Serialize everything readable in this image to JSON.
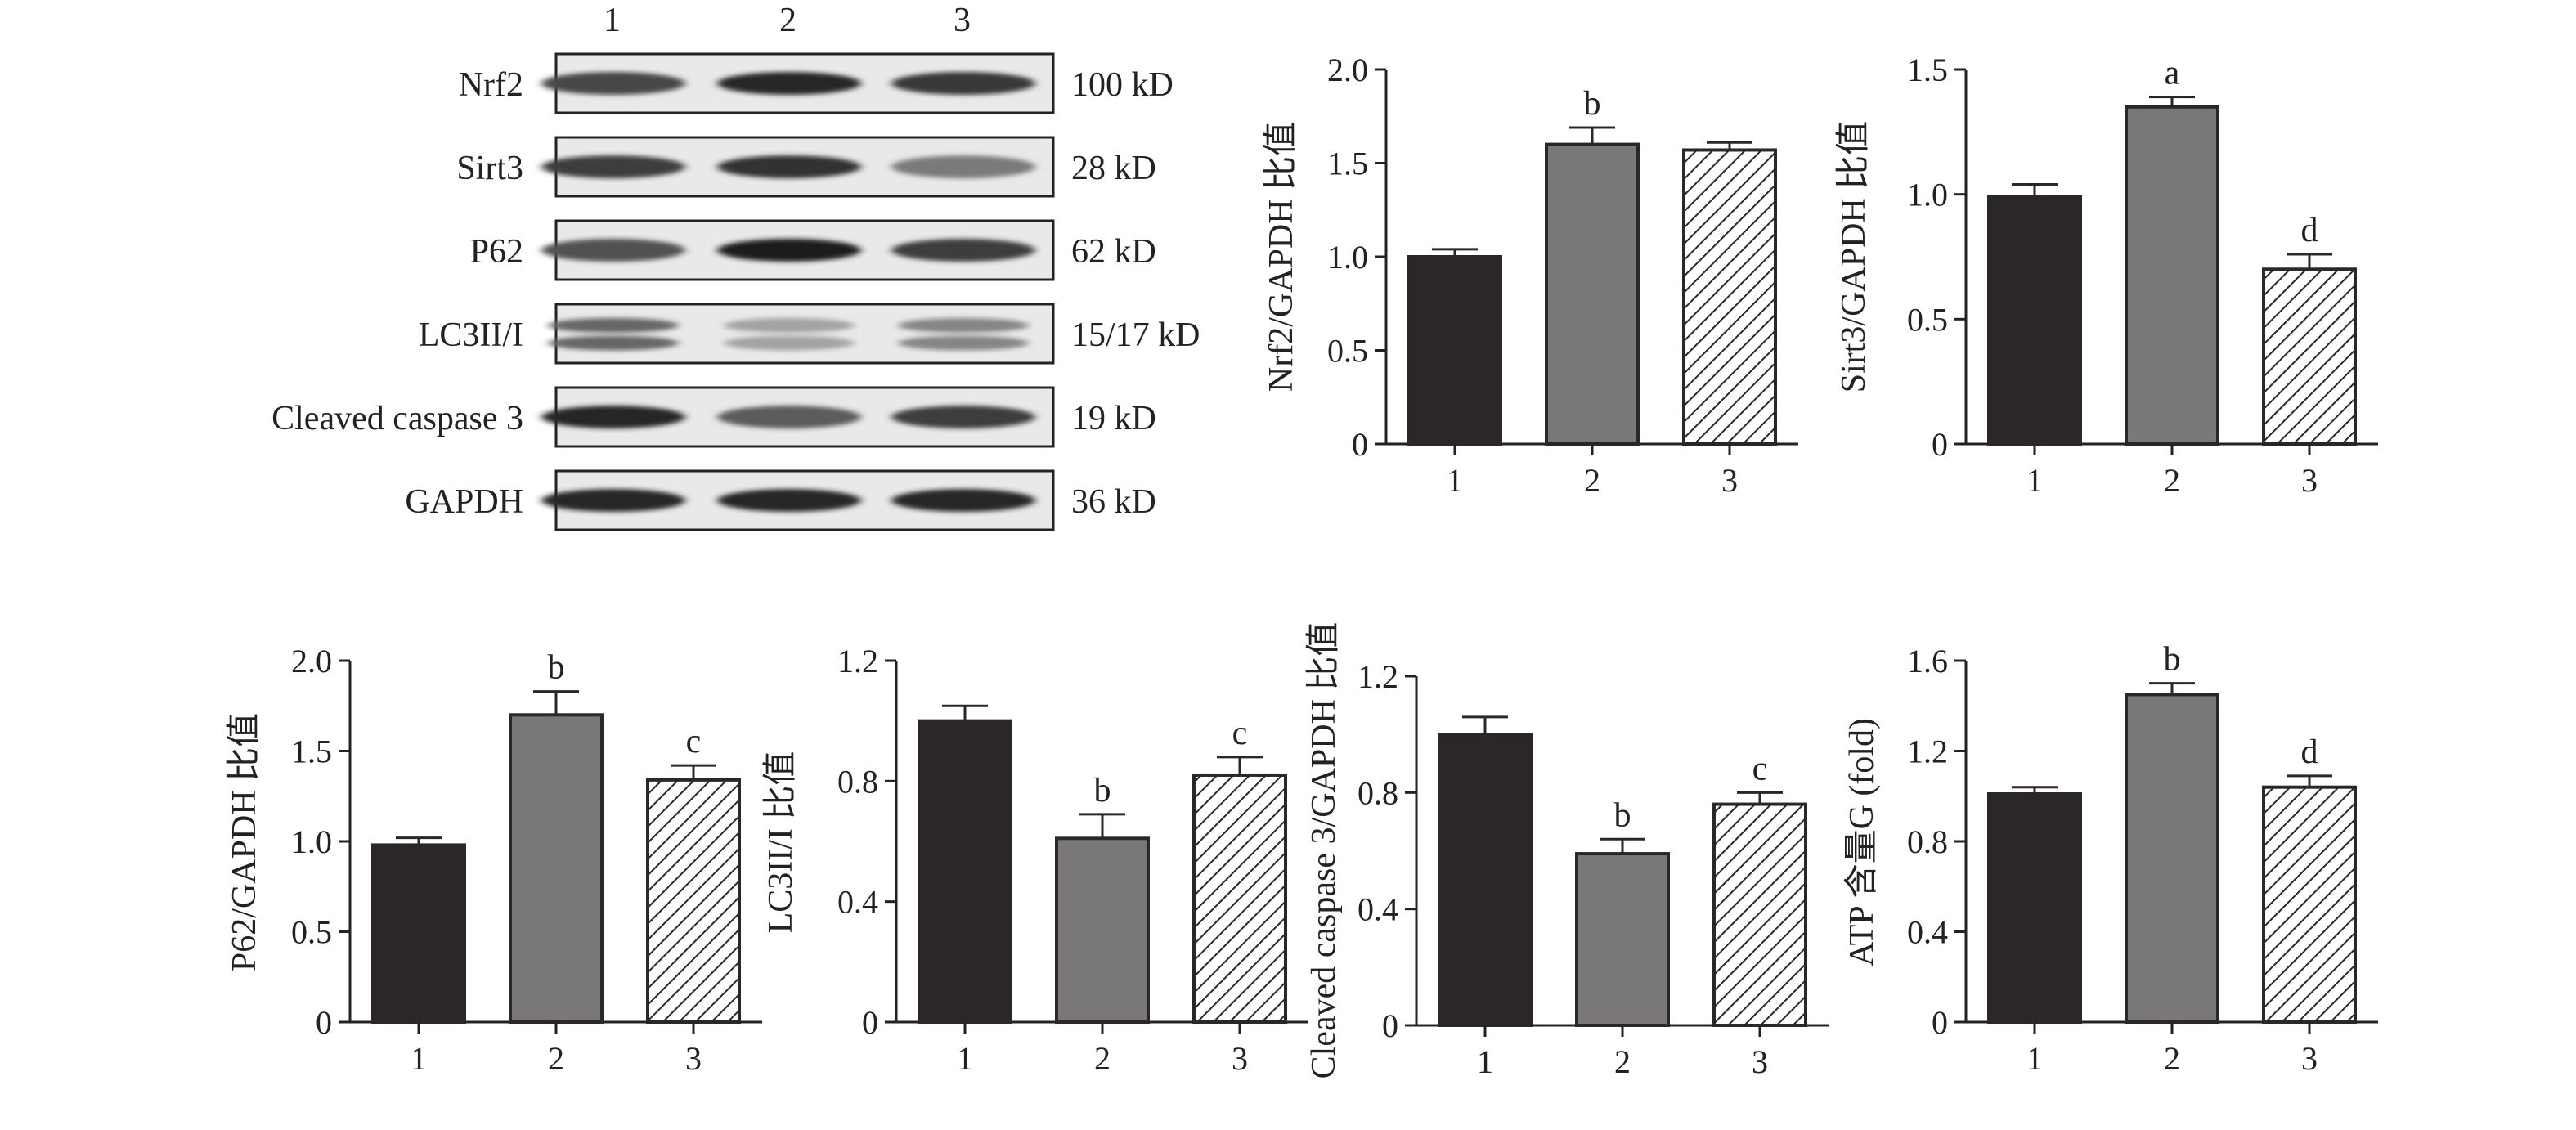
{
  "blot": {
    "lane_numbers": [
      "1",
      "2",
      "3"
    ],
    "rows": [
      {
        "label": "Nrf2",
        "size": "100 kD",
        "intensity": [
          0.8,
          0.95,
          0.88
        ],
        "double": false
      },
      {
        "label": "Sirt3",
        "size": "28 kD",
        "intensity": [
          0.85,
          0.9,
          0.55
        ],
        "double": false
      },
      {
        "label": "P62",
        "size": "62 kD",
        "intensity": [
          0.75,
          1.0,
          0.85
        ],
        "double": false
      },
      {
        "label": "LC3II/I",
        "size": "15/17 kD",
        "intensity": [
          0.65,
          0.35,
          0.5
        ],
        "double": true
      },
      {
        "label": "Cleaved caspase 3",
        "size": "19 kD",
        "intensity": [
          0.95,
          0.7,
          0.85
        ],
        "double": false
      },
      {
        "label": "GAPDH",
        "size": "36 kD",
        "intensity": [
          0.95,
          0.95,
          0.95
        ],
        "double": false
      }
    ]
  },
  "chart_data": [
    {
      "type": "bar",
      "id": "nrf2",
      "categories": [
        "1",
        "2",
        "3"
      ],
      "values": [
        1.0,
        1.6,
        1.57
      ],
      "errors": [
        0.04,
        0.09,
        0.04
      ],
      "letters": [
        "",
        "b",
        ""
      ],
      "ylabel": "Nrf2/GAPDH 比值",
      "ylim": [
        0,
        2.0
      ],
      "yticks": [
        0,
        0.5,
        1.0,
        1.5,
        2.0
      ],
      "ytick_labels": [
        "0",
        "0.5",
        "1.0",
        "1.5",
        "2.0"
      ]
    },
    {
      "type": "bar",
      "id": "sirt3",
      "categories": [
        "1",
        "2",
        "3"
      ],
      "values": [
        0.99,
        1.35,
        0.7
      ],
      "errors": [
        0.05,
        0.04,
        0.06
      ],
      "letters": [
        "",
        "a",
        "d"
      ],
      "ylabel": "Sirt3/GAPDH 比值",
      "ylim": [
        0,
        1.5
      ],
      "yticks": [
        0,
        0.5,
        1.0,
        1.5
      ],
      "ytick_labels": [
        "0",
        "0.5",
        "1.0",
        "1.5"
      ]
    },
    {
      "type": "bar",
      "id": "p62",
      "categories": [
        "1",
        "2",
        "3"
      ],
      "values": [
        0.98,
        1.7,
        1.34
      ],
      "errors": [
        0.04,
        0.13,
        0.08
      ],
      "letters": [
        "",
        "b",
        "c"
      ],
      "ylabel": "P62/GAPDH 比值",
      "ylim": [
        0,
        2.0
      ],
      "yticks": [
        0,
        0.5,
        1.0,
        1.5,
        2.0
      ],
      "ytick_labels": [
        "0",
        "0.5",
        "1.0",
        "1.5",
        "2.0"
      ]
    },
    {
      "type": "bar",
      "id": "lc3",
      "categories": [
        "1",
        "2",
        "3"
      ],
      "values": [
        1.0,
        0.61,
        0.82
      ],
      "errors": [
        0.05,
        0.08,
        0.06
      ],
      "letters": [
        "",
        "b",
        "c"
      ],
      "ylabel": "LC3II/I 比值",
      "ylim": [
        0,
        1.2
      ],
      "yticks": [
        0,
        0.4,
        0.8,
        1.2
      ],
      "ytick_labels": [
        "0",
        "0.4",
        "0.8",
        "1.2"
      ]
    },
    {
      "type": "bar",
      "id": "casp3",
      "categories": [
        "1",
        "2",
        "3"
      ],
      "values": [
        1.0,
        0.59,
        0.76
      ],
      "errors": [
        0.06,
        0.05,
        0.04
      ],
      "letters": [
        "",
        "b",
        "c"
      ],
      "ylabel": "Cleaved caspase 3/GAPDH 比值",
      "ylim": [
        0,
        1.2
      ],
      "yticks": [
        0,
        0.4,
        0.8,
        1.2
      ],
      "ytick_labels": [
        "0",
        "0.4",
        "0.8",
        "1.2"
      ]
    },
    {
      "type": "bar",
      "id": "atp",
      "categories": [
        "1",
        "2",
        "3"
      ],
      "values": [
        1.01,
        1.45,
        1.04
      ],
      "errors": [
        0.03,
        0.05,
        0.05
      ],
      "letters": [
        "",
        "b",
        "d"
      ],
      "ylabel": "ATP 含量G (fold)",
      "ylim": [
        0,
        1.6
      ],
      "yticks": [
        0,
        0.4,
        0.8,
        1.2,
        1.6
      ],
      "ytick_labels": [
        "0",
        "0.4",
        "0.8",
        "1.2",
        "1.6"
      ]
    }
  ],
  "colors": {
    "group1": "#2b2628",
    "group2": "#7a7778",
    "group3_hatch": "#2b2628",
    "axis": "#222222"
  }
}
